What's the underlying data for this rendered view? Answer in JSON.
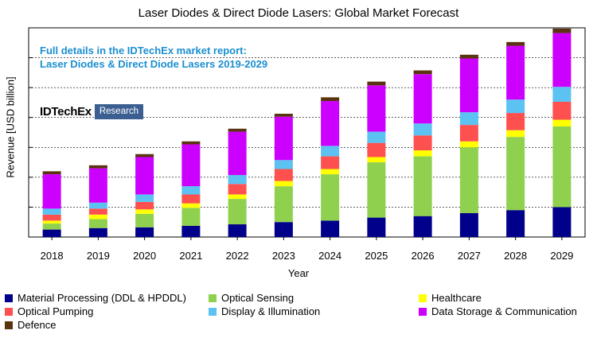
{
  "chart_data": {
    "type": "bar",
    "stacked": true,
    "title": "Laser Diodes & Direct Diode Lasers: Global Market Forecast",
    "xlabel": "Year",
    "ylabel": "Revenue [USD billion]",
    "ylim": [
      0,
      14
    ],
    "grid": true,
    "legend_position": "bottom",
    "categories": [
      "2018",
      "2019",
      "2020",
      "2021",
      "2022",
      "2023",
      "2024",
      "2025",
      "2026",
      "2027",
      "2028",
      "2029"
    ],
    "series": [
      {
        "name": "Material Processing (DDL & HPDDL)",
        "color": "#00008b",
        "values": [
          0.5,
          0.6,
          0.65,
          0.75,
          0.85,
          1.0,
          1.1,
          1.3,
          1.4,
          1.6,
          1.8,
          2.0
        ]
      },
      {
        "name": "Optical Sensing",
        "color": "#8fd14f",
        "values": [
          0.4,
          0.6,
          0.9,
          1.2,
          1.7,
          2.4,
          3.1,
          3.7,
          4.0,
          4.4,
          4.9,
          5.4
        ]
      },
      {
        "name": "Healthcare",
        "color": "#ffff00",
        "values": [
          0.2,
          0.3,
          0.3,
          0.3,
          0.3,
          0.35,
          0.35,
          0.35,
          0.4,
          0.4,
          0.45,
          0.45
        ]
      },
      {
        "name": "Optical Pumping",
        "color": "#ff5050",
        "values": [
          0.4,
          0.4,
          0.5,
          0.6,
          0.7,
          0.8,
          0.85,
          0.95,
          1.0,
          1.1,
          1.15,
          1.2
        ]
      },
      {
        "name": "Display & Illumination",
        "color": "#5bc2f2",
        "values": [
          0.4,
          0.4,
          0.5,
          0.55,
          0.6,
          0.6,
          0.7,
          0.75,
          0.8,
          0.85,
          0.9,
          1.0
        ]
      },
      {
        "name": "Data Storage & Communication",
        "color": "#cc00ff",
        "values": [
          2.3,
          2.3,
          2.5,
          2.8,
          2.9,
          2.9,
          3.0,
          3.1,
          3.3,
          3.6,
          3.6,
          3.6
        ]
      },
      {
        "name": "Defence",
        "color": "#5a3410",
        "values": [
          0.2,
          0.2,
          0.2,
          0.2,
          0.2,
          0.2,
          0.25,
          0.25,
          0.25,
          0.25,
          0.25,
          0.3
        ]
      }
    ]
  },
  "note_line1": "Full details in the IDTechEx market report:",
  "note_line2": "Laser Diodes & Direct Diode Lasers 2019-2029",
  "brand_name": "IDTechEx",
  "brand_tag": "Research"
}
